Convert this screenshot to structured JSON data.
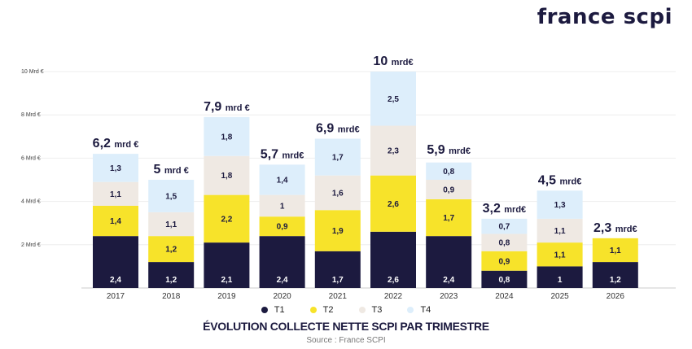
{
  "brand": "france scpi",
  "colors": {
    "T1": "#1c1a3f",
    "T2": "#f7e32a",
    "T3": "#efe9e3",
    "T4": "#ddeefb"
  },
  "chart_data": {
    "type": "bar",
    "stacked": true,
    "title": "ÉVOLUTION COLLECTE NETTE  SCPI PAR TRIMESTRE",
    "source": "Source : France SCPI",
    "categories": [
      "2017",
      "2018",
      "2019",
      "2020",
      "2021",
      "2022",
      "2023",
      "2024",
      "2025",
      "2026"
    ],
    "y_ticks": [
      {
        "value": 2,
        "label": "2 Mrd €"
      },
      {
        "value": 4,
        "label": "4 Mrd €"
      },
      {
        "value": 6,
        "label": "6 Mrd €"
      },
      {
        "value": 8,
        "label": "8 Mrd €"
      },
      {
        "value": 10,
        "label": "10 Mrd €"
      }
    ],
    "ylim": [
      0,
      10
    ],
    "grid": false,
    "legend_position": "bottom",
    "series": [
      {
        "name": "T1",
        "values": [
          2.4,
          1.2,
          2.1,
          2.4,
          1.7,
          2.6,
          2.4,
          0.8,
          1,
          1.2
        ],
        "labels": [
          "2,4",
          "1,2",
          "2,1",
          "2,4",
          "1,7",
          "2,6",
          "2,4",
          "0,8",
          "1",
          "1,2"
        ]
      },
      {
        "name": "T2",
        "values": [
          1.4,
          1.2,
          2.2,
          0.9,
          1.9,
          2.6,
          1.7,
          0.9,
          1.1,
          1.1
        ],
        "labels": [
          "1,4",
          "1,2",
          "2,2",
          "0,9",
          "1,9",
          "2,6",
          "1,7",
          "0,9",
          "1,1",
          "1,1"
        ]
      },
      {
        "name": "T3",
        "values": [
          1.1,
          1.1,
          1.8,
          1,
          1.6,
          2.3,
          0.9,
          0.8,
          1.1,
          null
        ],
        "labels": [
          "1,1",
          "1,1",
          "1,8",
          "1",
          "1,6",
          "2,3",
          "0,9",
          "0,8",
          "1,1",
          ""
        ]
      },
      {
        "name": "T4",
        "values": [
          1.3,
          1.5,
          1.8,
          1.4,
          1.7,
          2.5,
          0.8,
          0.7,
          1.3,
          null
        ],
        "labels": [
          "1,3",
          "1,5",
          "1,8",
          "1,4",
          "1,7",
          "2,5",
          "0,8",
          "0,7",
          "1,3",
          ""
        ]
      }
    ],
    "totals": [
      {
        "value": 6.2,
        "number": "6,2",
        "unit": "mrd €"
      },
      {
        "value": 5,
        "number": "5",
        "unit": "mrd €"
      },
      {
        "value": 7.9,
        "number": "7,9",
        "unit": "mrd €"
      },
      {
        "value": 5.7,
        "number": "5,7",
        "unit": "mrd€"
      },
      {
        "value": 6.9,
        "number": "6,9",
        "unit": "mrd€"
      },
      {
        "value": 10,
        "number": "10",
        "unit": "mrd€"
      },
      {
        "value": 5.9,
        "number": "5,9",
        "unit": "mrd€"
      },
      {
        "value": 3.2,
        "number": "3,2",
        "unit": "mrd€"
      },
      {
        "value": 4.5,
        "number": "4,5",
        "unit": "mrd€"
      },
      {
        "value": 2.3,
        "number": "2,3",
        "unit": "mrd€"
      }
    ]
  }
}
